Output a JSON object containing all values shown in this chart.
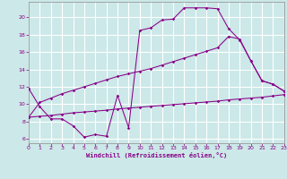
{
  "xlabel": "Windchill (Refroidissement éolien,°C)",
  "background_color": "#cce8e8",
  "grid_color": "#ffffff",
  "line_color": "#880088",
  "xlim": [
    0,
    23
  ],
  "ylim": [
    5.5,
    21.8
  ],
  "xticks": [
    0,
    1,
    2,
    3,
    4,
    5,
    6,
    7,
    8,
    9,
    10,
    11,
    12,
    13,
    14,
    15,
    16,
    17,
    18,
    19,
    20,
    21,
    22,
    23
  ],
  "yticks": [
    6,
    8,
    10,
    12,
    14,
    16,
    18,
    20
  ],
  "line1_x": [
    0,
    1,
    2,
    3,
    4,
    5,
    6,
    7,
    8,
    9,
    10,
    11,
    12,
    13,
    14,
    15,
    16,
    17,
    18,
    19,
    20,
    21,
    22,
    23
  ],
  "line1_y": [
    11.8,
    9.7,
    8.3,
    8.3,
    7.5,
    6.2,
    6.5,
    6.3,
    11.0,
    7.3,
    18.5,
    18.8,
    19.7,
    19.8,
    21.1,
    21.1,
    21.1,
    21.0,
    18.7,
    17.4,
    15.0,
    12.7,
    12.3,
    11.5
  ],
  "line2_x": [
    0,
    1,
    2,
    3,
    4,
    5,
    6,
    7,
    8,
    9,
    10,
    11,
    12,
    13,
    14,
    15,
    16,
    17,
    18,
    19,
    20,
    21,
    22,
    23
  ],
  "line2_y": [
    8.5,
    10.2,
    10.7,
    11.2,
    11.6,
    12.0,
    12.4,
    12.8,
    13.2,
    13.5,
    13.8,
    14.1,
    14.5,
    14.9,
    15.3,
    15.7,
    16.1,
    16.5,
    17.8,
    17.5,
    15.0,
    12.7,
    12.3,
    11.5
  ],
  "line3_x": [
    0,
    1,
    2,
    3,
    4,
    5,
    6,
    7,
    8,
    9,
    10,
    11,
    12,
    13,
    14,
    15,
    16,
    17,
    18,
    19,
    20,
    21,
    22,
    23
  ],
  "line3_y": [
    8.5,
    8.6,
    8.7,
    8.85,
    9.0,
    9.1,
    9.2,
    9.3,
    9.45,
    9.55,
    9.65,
    9.75,
    9.85,
    9.95,
    10.05,
    10.15,
    10.25,
    10.35,
    10.5,
    10.6,
    10.7,
    10.8,
    10.95,
    11.1
  ]
}
